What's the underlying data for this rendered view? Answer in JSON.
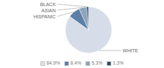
{
  "chart_data": {
    "type": "pie",
    "categories": [
      "WHITE",
      "HISPANIC",
      "ASIAN",
      "BLACK"
    ],
    "values": [
      84.9,
      8.4,
      5.3,
      1.3
    ],
    "value_labels": [
      "84.9%",
      "8.4%",
      "5.3%",
      "1.3%"
    ],
    "colors": [
      "#d6dde8",
      "#5b7fa6",
      "#8da4bc",
      "#2d4d6e"
    ],
    "legend": "bottom"
  }
}
